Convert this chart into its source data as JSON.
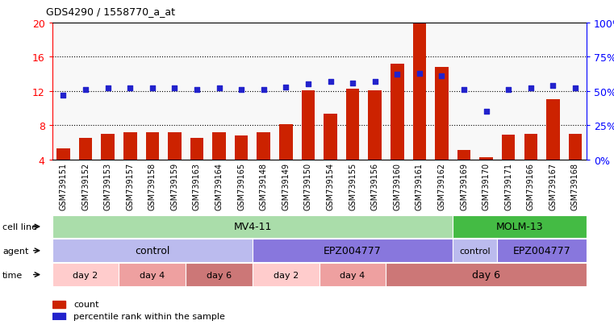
{
  "title": "GDS4290 / 1558770_a_at",
  "samples": [
    "GSM739151",
    "GSM739152",
    "GSM739153",
    "GSM739157",
    "GSM739158",
    "GSM739159",
    "GSM739163",
    "GSM739164",
    "GSM739165",
    "GSM739148",
    "GSM739149",
    "GSM739150",
    "GSM739154",
    "GSM739155",
    "GSM739156",
    "GSM739160",
    "GSM739161",
    "GSM739162",
    "GSM739169",
    "GSM739170",
    "GSM739171",
    "GSM739166",
    "GSM739167",
    "GSM739168"
  ],
  "counts": [
    5.3,
    6.5,
    7.0,
    7.2,
    7.2,
    7.2,
    6.5,
    7.2,
    6.8,
    7.2,
    8.1,
    12.1,
    9.3,
    12.3,
    12.1,
    15.2,
    20.0,
    14.8,
    5.1,
    4.3,
    6.9,
    7.0,
    11.0,
    7.0
  ],
  "percentiles": [
    47,
    51,
    52,
    52,
    52,
    52,
    51,
    52,
    51,
    51,
    53,
    55,
    57,
    56,
    57,
    62,
    63,
    61,
    51,
    35,
    51,
    52,
    54,
    52
  ],
  "ylim_left": [
    4,
    20
  ],
  "ylim_right": [
    0,
    100
  ],
  "yticks_left": [
    4,
    8,
    12,
    16,
    20
  ],
  "yticks_right": [
    0,
    25,
    50,
    75,
    100
  ],
  "ytick_labels_right": [
    "0%",
    "25%",
    "50%",
    "75%",
    "100%"
  ],
  "bar_color": "#CC2200",
  "dot_color": "#2222CC",
  "bar_width": 0.6,
  "cell_line_mv411_color": "#AADDAA",
  "cell_line_molm13_color": "#44BB44",
  "agent_control_color": "#BBBBEE",
  "agent_epz_color": "#8877DD",
  "time_day2_color": "#FFCCCC",
  "time_day4_color": "#EEA0A0",
  "time_day6_color": "#CC7777",
  "bg_color": "#FFFFFF",
  "plot_bg_color": "#F8F8F8",
  "legend_count_label": "count",
  "legend_percentile_label": "percentile rank within the sample",
  "cell_line_segments": [
    {
      "label": "MV4-11",
      "start": 0,
      "end": 18,
      "color": "#AADDAA"
    },
    {
      "label": "MOLM-13",
      "start": 18,
      "end": 24,
      "color": "#44BB44"
    }
  ],
  "agent_segments": [
    {
      "label": "control",
      "start": 0,
      "end": 9,
      "color": "#BBBBEE"
    },
    {
      "label": "EPZ004777",
      "start": 9,
      "end": 18,
      "color": "#8877DD"
    },
    {
      "label": "control",
      "start": 18,
      "end": 20,
      "color": "#BBBBEE"
    },
    {
      "label": "EPZ004777",
      "start": 20,
      "end": 24,
      "color": "#8877DD"
    }
  ],
  "time_segments": [
    {
      "label": "day 2",
      "start": 0,
      "end": 3,
      "color": "#FFCCCC"
    },
    {
      "label": "day 4",
      "start": 3,
      "end": 6,
      "color": "#EEA0A0"
    },
    {
      "label": "day 6",
      "start": 6,
      "end": 9,
      "color": "#CC7777"
    },
    {
      "label": "day 2",
      "start": 9,
      "end": 12,
      "color": "#FFCCCC"
    },
    {
      "label": "day 4",
      "start": 12,
      "end": 15,
      "color": "#EEA0A0"
    },
    {
      "label": "day 6",
      "start": 15,
      "end": 24,
      "color": "#CC7777"
    }
  ],
  "row_labels": [
    "cell line",
    "agent",
    "time"
  ]
}
